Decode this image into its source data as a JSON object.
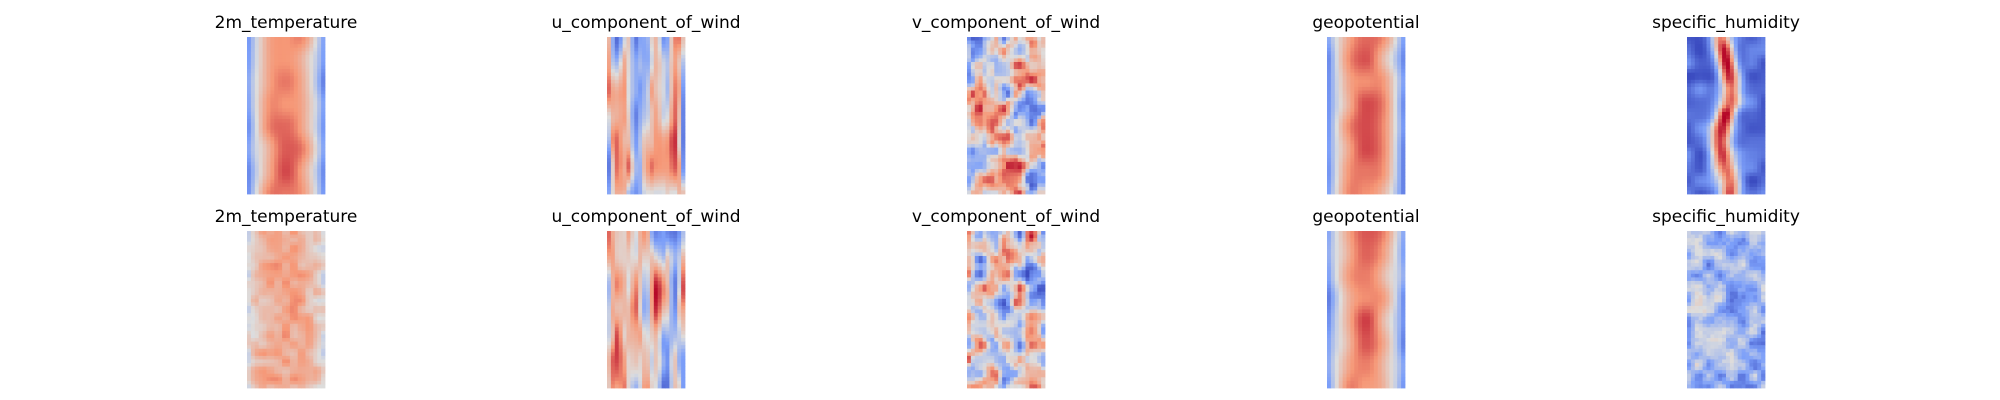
{
  "chart_data": [
    {
      "type": "heatmap",
      "title": "2m_temperature",
      "colormap": "coolwarm",
      "axes": "off",
      "row": 1,
      "column": 1,
      "pattern": "warm-band"
    },
    {
      "type": "heatmap",
      "title": "u_component_of_wind",
      "colormap": "coolwarm",
      "axes": "off",
      "row": 1,
      "column": 2,
      "pattern": "streaky"
    },
    {
      "type": "heatmap",
      "title": "v_component_of_wind",
      "colormap": "coolwarm",
      "axes": "off",
      "row": 1,
      "column": 3,
      "pattern": "noisy"
    },
    {
      "type": "heatmap",
      "title": "geopotential",
      "colormap": "coolwarm",
      "axes": "off",
      "row": 1,
      "column": 4,
      "pattern": "warm-band"
    },
    {
      "type": "heatmap",
      "title": "specific_humidity",
      "colormap": "coolwarm",
      "axes": "off",
      "row": 1,
      "column": 5,
      "pattern": "narrow-core"
    },
    {
      "type": "heatmap",
      "title": "2m_temperature",
      "colormap": "coolwarm",
      "axes": "off",
      "row": 2,
      "column": 1,
      "pattern": "warm-uniform"
    },
    {
      "type": "heatmap",
      "title": "u_component_of_wind",
      "colormap": "coolwarm",
      "axes": "off",
      "row": 2,
      "column": 2,
      "pattern": "streaky"
    },
    {
      "type": "heatmap",
      "title": "v_component_of_wind",
      "colormap": "coolwarm",
      "axes": "off",
      "row": 2,
      "column": 3,
      "pattern": "noisy"
    },
    {
      "type": "heatmap",
      "title": "geopotential",
      "colormap": "coolwarm",
      "axes": "off",
      "row": 2,
      "column": 4,
      "pattern": "warm-band"
    },
    {
      "type": "heatmap",
      "title": "specific_humidity",
      "colormap": "coolwarm",
      "axes": "off",
      "row": 2,
      "column": 5,
      "pattern": "cool-noisy"
    }
  ]
}
